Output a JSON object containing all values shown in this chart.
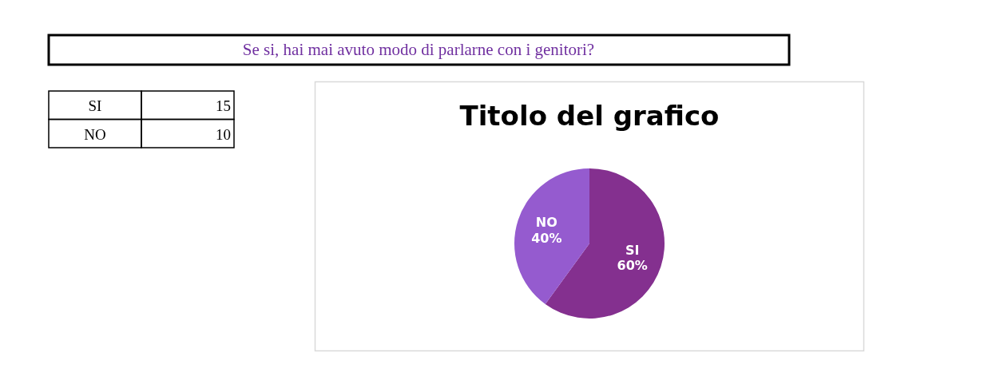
{
  "chart_data": {
    "type": "pie",
    "title": "Titolo del grafico",
    "subtitle": "Se si, hai mai avuto modo di parlarne con i genitori?",
    "categories": [
      "SI",
      "NO"
    ],
    "values": [
      60,
      40
    ],
    "colors": [
      "#84308f",
      "#955bcf"
    ],
    "value_labels": [
      "60%",
      "40%"
    ],
    "annotations": [
      "15",
      "10"
    ]
  }
}
